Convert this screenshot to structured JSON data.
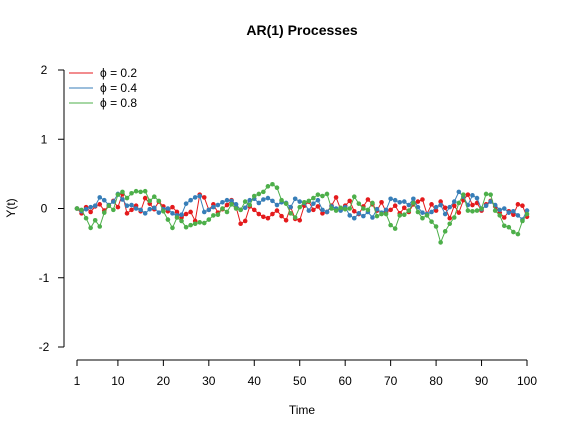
{
  "chart_data": {
    "type": "line",
    "title": "AR(1) Processes",
    "xlabel": "Time",
    "ylabel": "Y(t)",
    "xlim": [
      1,
      100
    ],
    "ylim": [
      -2,
      2
    ],
    "xticks": [
      1,
      10,
      20,
      30,
      40,
      50,
      60,
      70,
      80,
      90,
      100
    ],
    "yticks": [
      -2,
      -1,
      0,
      1,
      2
    ],
    "legend_position": "top-left",
    "series": [
      {
        "name": "phi = 0.2",
        "label_symbol": "ϕ",
        "label_rest": " = 0.2",
        "color": "#E41A1C",
        "values": [
          0.0,
          -0.07,
          0.02,
          -0.05,
          0.03,
          0.06,
          -0.03,
          0.04,
          0.11,
          0.02,
          0.21,
          -0.07,
          -0.02,
          0.04,
          -0.04,
          0.15,
          0.07,
          -0.01,
          0.1,
          0.03,
          -0.04,
          0.02,
          -0.05,
          -0.13,
          -0.08,
          -0.05,
          -0.18,
          0.2,
          0.16,
          -0.02,
          0.06,
          -0.06,
          -0.01,
          0.05,
          0.12,
          0.02,
          -0.22,
          -0.18,
          0.03,
          -0.02,
          -0.08,
          -0.12,
          -0.14,
          -0.08,
          -0.03,
          -0.11,
          -0.17,
          0.02,
          -0.15,
          -0.17,
          0.04,
          0.1,
          -0.02,
          0.03,
          -0.07,
          -0.05,
          0.04,
          0.16,
          -0.01,
          0.04,
          0.11,
          -0.04,
          -0.08,
          0.03,
          0.13,
          0.06,
          -0.03,
          0.09,
          -0.05,
          -0.02,
          0.04,
          -0.07,
          0.01,
          -0.05,
          0.06,
          0.1,
          0.13,
          -0.08,
          0.06,
          -0.03,
          0.1,
          0.01,
          -0.14,
          0.04,
          -0.06,
          0.12,
          0.2,
          0.05,
          0.08,
          -0.03,
          0.06,
          0.11,
          0.03,
          -0.06,
          -0.13,
          -0.04,
          -0.09,
          0.06,
          0.04,
          -0.12
        ]
      },
      {
        "name": "phi = 0.4",
        "label_symbol": "ϕ",
        "label_rest": " = 0.4",
        "color": "#377EB8",
        "values": [
          0.0,
          -0.04,
          -0.01,
          0.02,
          0.04,
          0.16,
          0.12,
          0.05,
          0.1,
          0.21,
          0.13,
          0.04,
          0.05,
          0.0,
          -0.02,
          -0.07,
          -0.01,
          0.01,
          -0.06,
          -0.01,
          0.0,
          -0.07,
          -0.1,
          -0.09,
          0.07,
          0.12,
          0.16,
          0.18,
          -0.05,
          -0.02,
          0.02,
          0.05,
          0.09,
          0.12,
          0.11,
          0.06,
          -0.02,
          0.01,
          0.12,
          0.14,
          0.08,
          0.13,
          0.15,
          0.11,
          0.05,
          0.09,
          0.08,
          0.02,
          0.14,
          0.1,
          0.08,
          -0.03,
          0.07,
          0.12,
          -0.02,
          -0.05,
          0.03,
          0.0,
          -0.03,
          0.02,
          -0.1,
          -0.14,
          -0.07,
          -0.11,
          -0.05,
          -0.13,
          -0.01,
          -0.06,
          -0.02,
          0.14,
          0.12,
          0.09,
          0.1,
          0.05,
          0.14,
          0.02,
          -0.06,
          -0.08,
          -0.05,
          0.02,
          0.05,
          -0.08,
          0.02,
          0.1,
          0.24,
          0.17,
          0.05,
          0.19,
          0.15,
          -0.01,
          0.04,
          0.1,
          0.05,
          -0.02,
          0.0,
          -0.06,
          -0.04,
          -0.1,
          -0.16,
          -0.03
        ]
      },
      {
        "name": "phi = 0.8",
        "label_symbol": "ϕ",
        "label_rest": " = 0.8",
        "color": "#4DAF4A",
        "values": [
          0.0,
          -0.02,
          -0.14,
          -0.28,
          -0.17,
          -0.26,
          -0.06,
          0.04,
          -0.02,
          0.2,
          0.24,
          0.15,
          0.22,
          0.25,
          0.24,
          0.25,
          0.11,
          0.17,
          0.11,
          -0.04,
          -0.16,
          -0.28,
          -0.13,
          -0.18,
          -0.27,
          -0.24,
          -0.22,
          -0.2,
          -0.21,
          -0.16,
          -0.1,
          -0.09,
          0.0,
          -0.05,
          0.06,
          0.0,
          -0.02,
          0.1,
          0.05,
          0.18,
          0.21,
          0.24,
          0.32,
          0.35,
          0.3,
          0.12,
          0.07,
          -0.07,
          -0.13,
          0.02,
          0.09,
          0.11,
          0.15,
          0.2,
          0.18,
          0.21,
          0.0,
          -0.03,
          0.01,
          -0.01,
          0.0,
          0.17,
          0.07,
          0.0,
          -0.02,
          0.08,
          -0.11,
          -0.08,
          -0.08,
          -0.24,
          -0.29,
          -0.1,
          -0.09,
          -0.03,
          0.08,
          -0.05,
          -0.14,
          -0.1,
          -0.19,
          -0.26,
          -0.49,
          -0.33,
          -0.22,
          -0.13,
          0.08,
          0.2,
          -0.03,
          -0.04,
          -0.03,
          0.0,
          0.21,
          0.2,
          -0.03,
          -0.1,
          -0.25,
          -0.27,
          -0.34,
          -0.37,
          -0.18,
          -0.08
        ]
      }
    ]
  }
}
